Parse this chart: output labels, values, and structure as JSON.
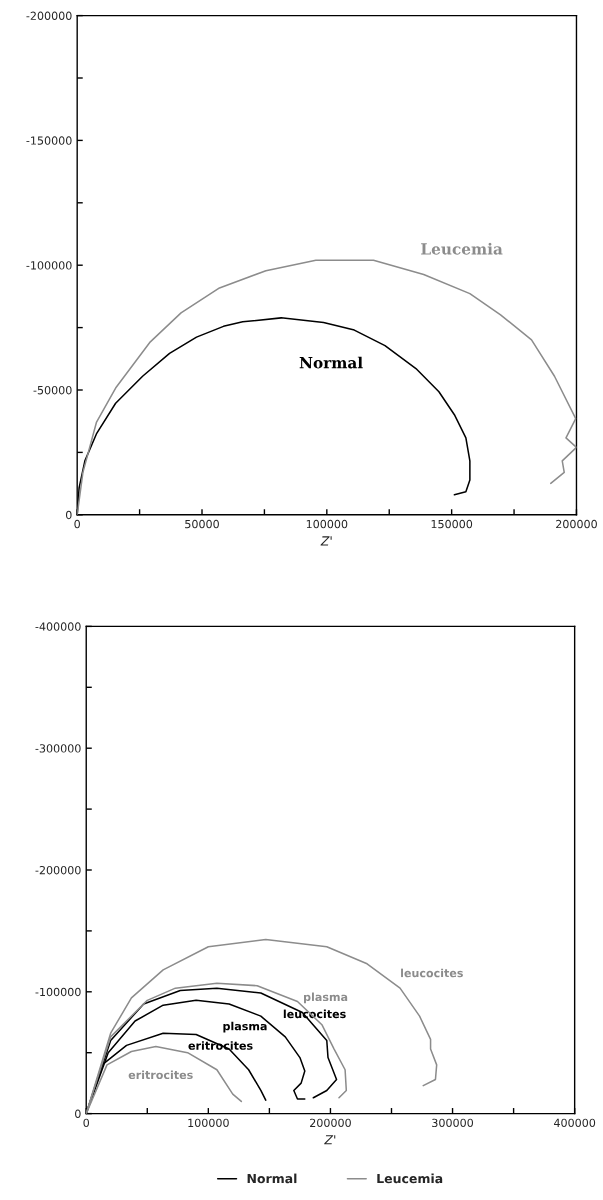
{
  "chart_data": [
    {
      "type": "line",
      "xlabel": "Z'",
      "xlim": [
        0,
        200000
      ],
      "ylim": [
        0,
        -200000
      ],
      "xticks": [
        0,
        {
          "value": 25000,
          "label": null
        },
        50000,
        {
          "value": 75000,
          "label": null
        },
        100000,
        {
          "value": 125000,
          "label": null
        },
        150000,
        {
          "value": 175000,
          "label": null
        },
        200000
      ],
      "yticks": [
        0,
        {
          "value": -25000,
          "label": null
        },
        -50000,
        {
          "value": -75000,
          "label": null
        },
        -100000,
        {
          "value": -125000,
          "label": null
        },
        -150000,
        {
          "value": -175000,
          "label": null
        },
        -200000
      ],
      "series": [
        {
          "name": "Normal",
          "color": "#000000",
          "x": [
            0,
            770,
            3080,
            7700,
            15400,
            26200,
            37000,
            47800,
            58600,
            66300,
            81700,
            98700,
            111000,
            123300,
            135700,
            144900,
            151100,
            155700,
            157300,
            157300,
            155700,
            151100
          ],
          "values": [
            0,
            -10800,
            -21600,
            -32400,
            -44700,
            -55500,
            -64700,
            -71200,
            -75500,
            -77300,
            -78900,
            -77000,
            -74000,
            -67800,
            -58600,
            -49300,
            -40100,
            -30800,
            -21600,
            -13900,
            -9200,
            -8000
          ]
        },
        {
          "name": "Leucemia",
          "color": "#8c8c8c",
          "x": [
            0,
            2300,
            7700,
            15400,
            29300,
            41600,
            57000,
            75600,
            95600,
            118700,
            138800,
            157300,
            169600,
            182000,
            191200,
            199700,
            195800,
            200000,
            194300,
            195100,
            189700
          ],
          "values": [
            0,
            -17000,
            -37000,
            -50800,
            -69300,
            -80900,
            -90900,
            -97800,
            -102000,
            -102000,
            -96300,
            -88600,
            -80100,
            -70100,
            -55500,
            -38500,
            -30800,
            -27000,
            -21600,
            -17000,
            -12600
          ]
        }
      ]
    },
    {
      "type": "line",
      "xlabel": "Z'",
      "xlim": [
        0,
        400000
      ],
      "ylim": [
        0,
        -400000
      ],
      "xticks": [
        0,
        {
          "value": 50000,
          "label": null
        },
        100000,
        {
          "value": 150000,
          "label": null
        },
        200000,
        {
          "value": 250000,
          "label": null
        },
        300000,
        {
          "value": 350000,
          "label": null
        },
        400000
      ],
      "yticks": [
        0,
        {
          "value": -50000,
          "label": null
        },
        -100000,
        {
          "value": -150000,
          "label": null
        },
        -200000,
        {
          "value": -250000,
          "label": null
        },
        -300000,
        {
          "value": -350000,
          "label": null
        },
        -400000
      ],
      "legend": "bottom",
      "series": [
        {
          "name": "eritrocites",
          "color": "#000000",
          "x": [
            0,
            13000,
            33000,
            63000,
            90000,
            117000,
            133000,
            143000,
            147000
          ],
          "values": [
            0,
            -40000,
            -56000,
            -66000,
            -65000,
            -53000,
            -36000,
            -19000,
            -11000
          ]
        },
        {
          "name": "plasma",
          "color": "#000000",
          "x": [
            0,
            18000,
            40000,
            63000,
            90000,
            117000,
            143000,
            163000,
            175000,
            179000,
            176000,
            170000,
            173000,
            179000
          ],
          "values": [
            0,
            -50000,
            -76000,
            -89000,
            -93000,
            -90000,
            -80000,
            -63000,
            -46000,
            -35000,
            -25000,
            -19000,
            -12000,
            -12000
          ]
        },
        {
          "name": "leucocites",
          "color": "#000000",
          "x": [
            0,
            20000,
            47000,
            77000,
            107000,
            143000,
            177000,
            197000,
            198000,
            205000,
            197000,
            186000
          ],
          "values": [
            0,
            -60000,
            -90000,
            -101000,
            -103000,
            -99000,
            -83000,
            -60000,
            -46000,
            -28000,
            -19000,
            -13000
          ]
        },
        {
          "name": "eritrocites",
          "color": "#8c8c8c",
          "x": [
            0,
            17000,
            37000,
            57000,
            83000,
            107000,
            120000,
            127000
          ],
          "values": [
            0,
            -40000,
            -51000,
            -55000,
            -50000,
            -36000,
            -16000,
            -10000
          ]
        },
        {
          "name": "plasma",
          "color": "#8c8c8c",
          "x": [
            0,
            20000,
            50000,
            73000,
            107000,
            140000,
            173000,
            193000,
            203000,
            212000,
            213000,
            207000
          ],
          "values": [
            0,
            -63000,
            -93000,
            -103000,
            -107000,
            -105000,
            -92000,
            -73000,
            -53000,
            -36000,
            -19000,
            -13000
          ]
        },
        {
          "name": "leucocites",
          "color": "#8c8c8c",
          "x": [
            0,
            7000,
            20000,
            37000,
            63000,
            100000,
            147000,
            197000,
            230000,
            257000,
            273000,
            282000,
            282000,
            287000,
            286000,
            276000
          ],
          "values": [
            0,
            -23000,
            -66000,
            -95000,
            -118000,
            -137000,
            -143000,
            -137000,
            -123000,
            -103000,
            -80000,
            -61000,
            -53000,
            -40000,
            -28000,
            -23000
          ]
        }
      ],
      "annotations": [
        "Normal",
        "Leucemia"
      ]
    }
  ]
}
